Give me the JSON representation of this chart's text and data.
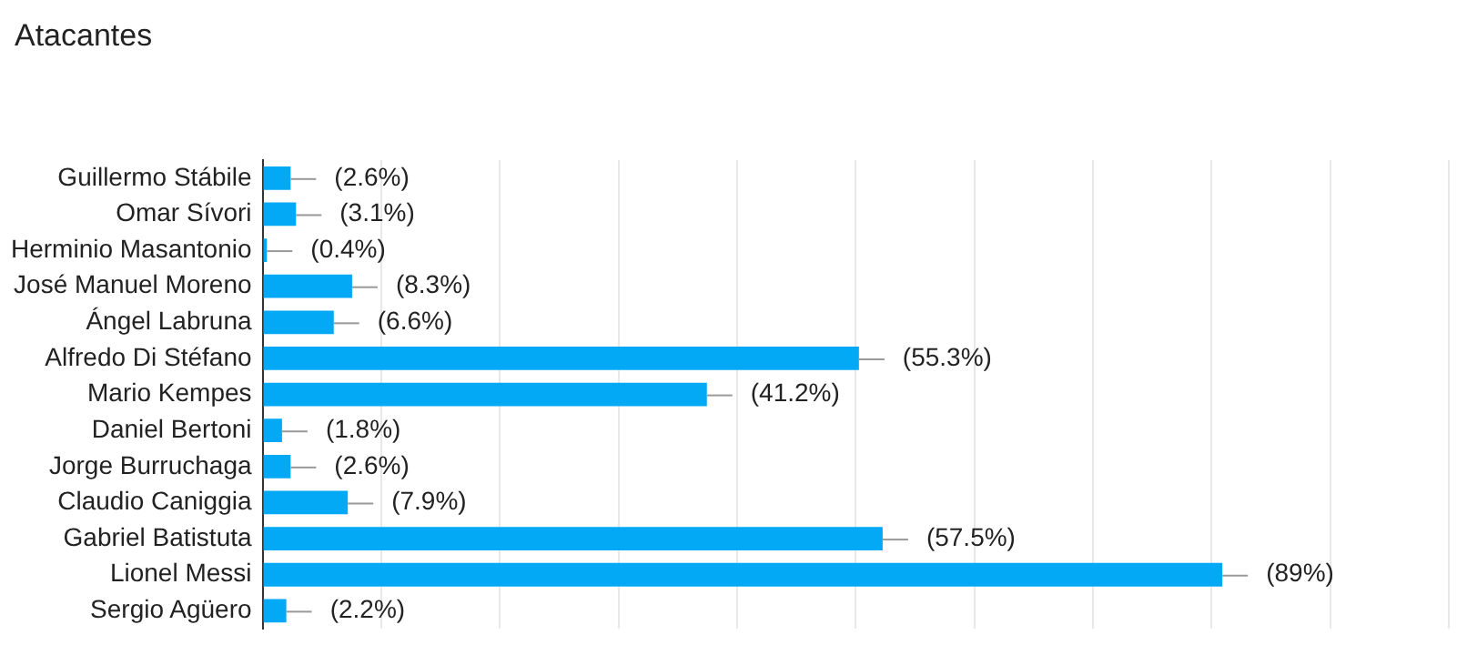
{
  "chart_data": {
    "type": "bar",
    "orientation": "horizontal",
    "title": "Atacantes",
    "categories": [
      "Guillermo Stábile",
      "Omar Sívori",
      "Herminio Masantonio",
      "José Manuel Moreno",
      "Ángel Labruna",
      "Alfredo Di Stéfano",
      "Mario Kempes",
      "Daniel Bertoni",
      "Jorge Burruchaga",
      "Claudio Caniggia",
      "Gabriel Batistuta",
      "Lionel Messi",
      "Sergio Agüero"
    ],
    "values": [
      2.6,
      3.1,
      0.4,
      8.3,
      6.6,
      55.3,
      41.2,
      1.8,
      2.6,
      7.9,
      57.5,
      89,
      2.2
    ],
    "value_labels": [
      "(2.6%)",
      "(3.1%)",
      "(0.4%)",
      "(8.3%)",
      "(6.6%)",
      "(55.3%)",
      "(41.2%)",
      "(1.8%)",
      "(2.6%)",
      "(7.9%)",
      "(57.5%)",
      "(89%)",
      "(2.2%)"
    ],
    "color": "#03a9f4",
    "xlim": [
      0,
      110
    ],
    "xticks": [
      {
        "value": 0,
        "label": null
      },
      {
        "value": 11,
        "label": null
      },
      {
        "value": 22,
        "label": null
      },
      {
        "value": 33,
        "label": null
      },
      {
        "value": 44,
        "label": null
      },
      {
        "value": 55,
        "label": null
      },
      {
        "value": 66,
        "label": null
      },
      {
        "value": 77,
        "label": null
      },
      {
        "value": 88,
        "label": null
      },
      {
        "value": 99,
        "label": null
      },
      {
        "value": 110,
        "label": null
      }
    ],
    "tick_labels": "y",
    "grid": "x",
    "legend": false
  }
}
